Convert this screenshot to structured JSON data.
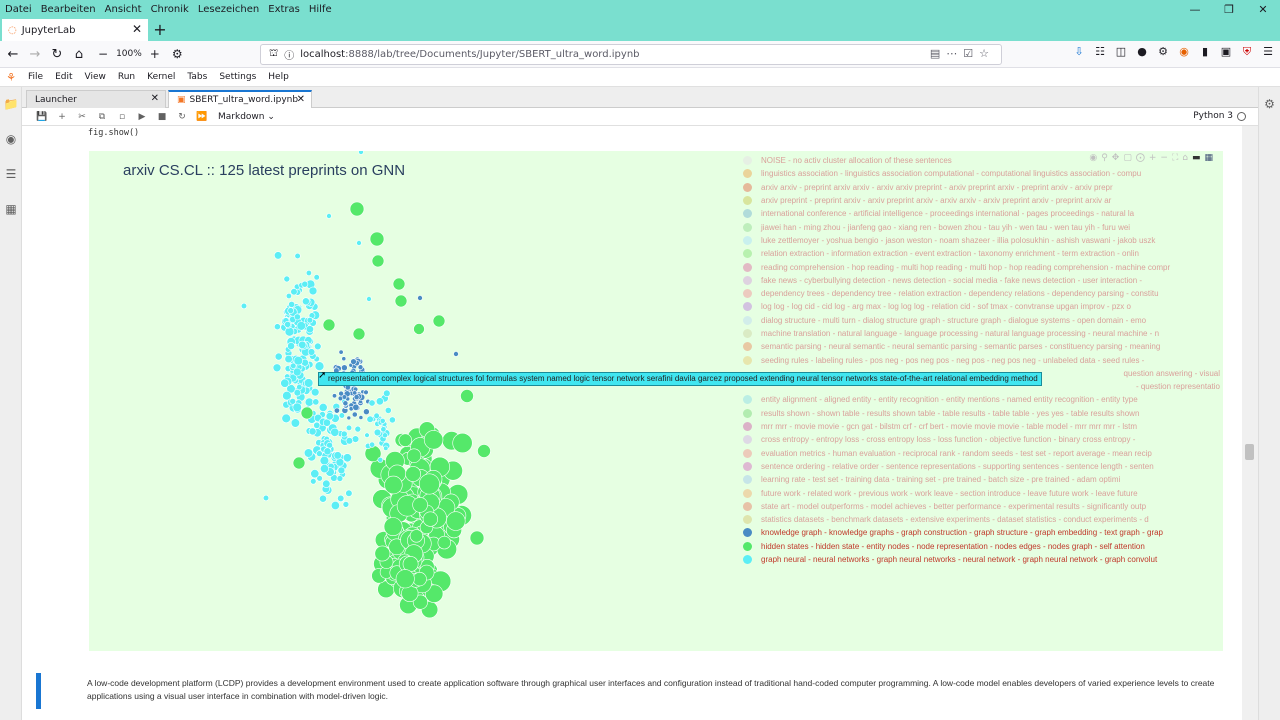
{
  "firefox": {
    "menu": [
      "Datei",
      "Bearbeiten",
      "Ansicht",
      "Chronik",
      "Lesezeichen",
      "Extras",
      "Hilfe"
    ],
    "tab_title": "JupyterLab",
    "zoom": "100%",
    "url_host": "localhost",
    "url_rest": ":8888/lab/tree/Documents/Jupyter/SBERT_ultra_word.ipynb"
  },
  "jupyter": {
    "menu": [
      "File",
      "Edit",
      "View",
      "Run",
      "Kernel",
      "Tabs",
      "Settings",
      "Help"
    ],
    "tabs": [
      {
        "label": "Launcher"
      },
      {
        "label": "SBERT_ultra_word.ipynb"
      }
    ],
    "cell_type": "Markdown",
    "kernel": "Python 3",
    "code_line": "fig.show()",
    "markdown_text": "A low-code development platform (LCDP) provides a development environment used to create application software through graphical user interfaces and configuration instead of traditional hand-coded computer programming. A low-code model enables developers of varied experience levels to create applications using a visual user interface in combination with model-driven logic."
  },
  "chart_data": {
    "type": "scatter",
    "title": "arxiv CS.CL :: 125 latest preprints on GNN",
    "background": "#e6ffe2",
    "hover_text": "representation complex logical structures fol formulas system named logic tensor network serafini davila garcez proposed extending neural tensor networks state-of-the-art relational embedding method",
    "legend": [
      {
        "label": "NOISE - no activ cluster allocation of these sentences",
        "color": "#e6e6e6",
        "active": false
      },
      {
        "label": "linguistics association - linguistics association computational - computational linguistics association - compu",
        "color": "#ecb86a",
        "active": false
      },
      {
        "label": "arxiv arxiv - preprint arxiv arxiv - arxiv arxiv preprint - arxiv preprint arxiv - preprint arxiv - arxiv prepr",
        "color": "#e58a6a",
        "active": false
      },
      {
        "label": "arxiv preprint - preprint arxiv - arxiv preprint arxiv - arxiv arxiv - arxiv preprint arxiv - preprint arxiv ar",
        "color": "#cfd36f",
        "active": false
      },
      {
        "label": "international conference - artificial intelligence - proceedings international - pages proceedings - natural la",
        "color": "#8ec5d6",
        "active": false
      },
      {
        "label": "jiawei han - ming zhou - jianfeng gao - xiang ren - bowen zhou - tau yih - wen tau - wen tau yih - furu wei",
        "color": "#a4e3a4",
        "active": false
      },
      {
        "label": "luke zettlemoyer - yoshua bengio - jason weston - noam shazeer - illia polosukhin - ashish vaswani - jakob uszk",
        "color": "#b6e6f6",
        "active": false
      },
      {
        "label": "relation extraction - information extraction - event extraction - taxonomy enrichment - term extraction - onlin",
        "color": "#9ae88e",
        "active": false
      },
      {
        "label": "reading comprehension - hop reading - multi hop reading - multi hop - hop reading comprehension - machine compr",
        "color": "#e08cb0",
        "active": false
      },
      {
        "label": "fake news - cyberbullying detection - news detection - social media - fake news detection - user interaction -",
        "color": "#d9b4e0",
        "active": false
      },
      {
        "label": "dependency trees - dependency tree - relation extraction - dependency relations - dependency parsing - constitu",
        "color": "#f0a8a8",
        "active": false
      },
      {
        "label": "log log - log cid - cid log - arg max - log log log - relation cid - sof tmax - convtranse upgan improv - pzx o",
        "color": "#c49ae0",
        "active": false
      },
      {
        "label": "dialog structure - multi turn - dialog structure graph - structure graph - dialogue systems - open domain - emo",
        "color": "#c5e1f0",
        "active": false
      },
      {
        "label": "machine translation - natural language - language processing - natural language processing - neural machine - n",
        "color": "#d2ddb0",
        "active": false
      },
      {
        "label": "semantic parsing - neural semantic - neural semantic parsing - semantic parses - constituency parsing - meaning",
        "color": "#e9a37a",
        "active": false
      },
      {
        "label": "seeding rules - labeling rules - pos neg - pos neg pos - neg pos - neg pos neg - unlabeled data - seed rules -",
        "color": "#e7d58a",
        "active": false
      },
      {
        "label": "question answering - visual",
        "color": "#a6e0dc",
        "active": false
      },
      {
        "label": "- question representatio",
        "color": "#b8b8ec",
        "active": false
      },
      {
        "label": "entity alignment - aligned entity - entity recognition - entity mentions - named entity recognition - entity type",
        "color": "#9fe3e6",
        "active": false
      },
      {
        "label": "results shown - shown table - results shown table - table results - table table - yes yes - table results shown",
        "color": "#8fe08f",
        "active": false
      },
      {
        "label": "mrr mrr - movie movie - gcn gat - bilstm crf - crf bert - movie movie movie - table model - mrr mrr mrr - lstm",
        "color": "#d47fb6",
        "active": false
      },
      {
        "label": "cross entropy - entropy loss - cross entropy loss - loss function - objective function - binary cross entropy -",
        "color": "#d8c0e8",
        "active": false
      },
      {
        "label": "evaluation metrics - human evaluation - reciprocal rank - random seeds - test set - report average - mean recip",
        "color": "#f0a8a0",
        "active": false
      },
      {
        "label": "sentence ordering - relative order - sentence representations - supporting sentences - sentence length - senten",
        "color": "#d98ac8",
        "active": false
      },
      {
        "label": "learning rate - test set - training data - training set - pre trained - batch size - pre trained - adam optimi",
        "color": "#b0d4ec",
        "active": false
      },
      {
        "label": "future work - related work - previous work - work leave - section introduce - leave future work - leave future",
        "color": "#f0c088",
        "active": false
      },
      {
        "label": "state art - model outperforms - model achieves - better performance - experimental results - significantly outp",
        "color": "#e89a80",
        "active": false
      },
      {
        "label": "statistics datasets - benchmark datasets - extensive experiments - dataset statistics - conduct experiments - d",
        "color": "#d8d48a",
        "active": false
      },
      {
        "label": "knowledge graph - knowledge graphs - graph construction - graph structure - graph embedding - text graph - grap",
        "color": "#4a8cc4",
        "active": true
      },
      {
        "label": "hidden states - hidden state - entity nodes - node representation - nodes edges - nodes graph - self attention",
        "color": "#55e86a",
        "active": true
      },
      {
        "label": "graph neural - neural networks - graph neural networks - neural network - graph neural network - graph convolut",
        "color": "#5ceef5",
        "active": true
      }
    ]
  }
}
